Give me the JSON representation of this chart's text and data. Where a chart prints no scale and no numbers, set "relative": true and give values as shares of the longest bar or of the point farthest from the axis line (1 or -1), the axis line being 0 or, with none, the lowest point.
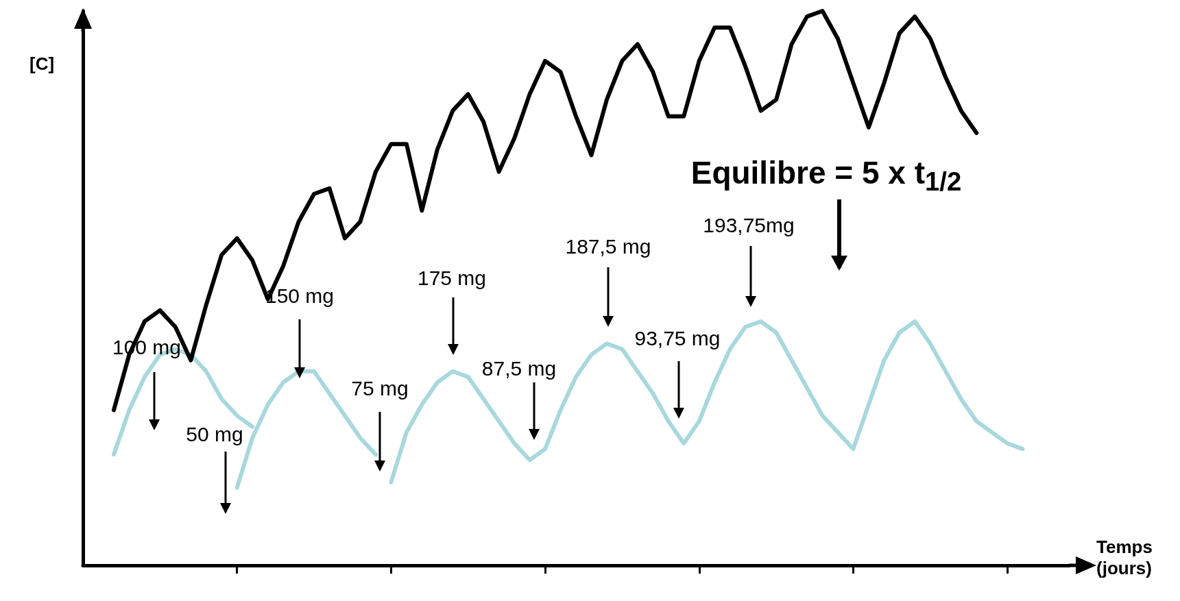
{
  "chart_data": {
    "type": "line",
    "relative": true,
    "xlabel": "Temps (jours)",
    "ylabel": "[C]",
    "categories": [
      null,
      null,
      null,
      null,
      null,
      null,
      null,
      null,
      null,
      null,
      null,
      null,
      null,
      null,
      null,
      null,
      null,
      null,
      null,
      null,
      null,
      null,
      null,
      null,
      null,
      null,
      null,
      null,
      null,
      null,
      null,
      null,
      null,
      null,
      null,
      null,
      null,
      null,
      null,
      null,
      null,
      null,
      null,
      null,
      null,
      null,
      null,
      null,
      null,
      null,
      null,
      null,
      null,
      null,
      null,
      null,
      null,
      null,
      null,
      null,
      null,
      null,
      null,
      null,
      null
    ],
    "series": [
      {
        "color": "#000000",
        "values": [
          null,
          null,
          0.28,
          0.38,
          0.44,
          0.46,
          0.43,
          0.37,
          0.47,
          0.56,
          0.59,
          0.55,
          0.48,
          0.54,
          0.62,
          0.67,
          0.68,
          0.59,
          0.62,
          0.71,
          0.76,
          0.76,
          0.64,
          0.75,
          0.82,
          0.85,
          0.8,
          0.71,
          0.77,
          0.85,
          0.91,
          0.89,
          0.81,
          0.74,
          0.84,
          0.91,
          0.94,
          0.89,
          0.81,
          0.81,
          0.91,
          0.97,
          0.97,
          0.9,
          0.82,
          0.84,
          0.94,
          0.99,
          1.0,
          0.95,
          0.87,
          0.79,
          0.87,
          0.96,
          0.99,
          0.95,
          0.88,
          0.82,
          0.78,
          null,
          null,
          null,
          null,
          null,
          null
        ]
      },
      {
        "color": "#a9d8dc",
        "values": [
          null,
          null,
          0.2,
          0.28,
          0.34,
          0.38,
          0.39,
          0.38,
          0.35,
          0.3,
          0.27,
          0.25,
          null,
          null,
          null,
          null,
          null,
          null,
          null,
          null,
          0.15,
          0.24,
          0.29,
          0.33,
          0.35,
          0.34,
          0.3,
          0.26,
          0.22,
          0.19,
          0.21,
          0.28,
          0.34,
          0.38,
          0.4,
          0.39,
          0.35,
          0.31,
          0.26,
          0.22,
          0.26,
          0.33,
          0.39,
          0.43,
          0.44,
          0.42,
          0.37,
          0.32,
          0.27,
          0.24,
          0.21,
          0.29,
          0.37,
          0.42,
          0.44,
          0.4,
          0.35,
          0.3,
          0.26,
          0.24,
          0.22,
          0.21,
          null,
          null,
          null
        ]
      },
      {
        "color": "#a9d8dc",
        "values": [
          null,
          null,
          null,
          null,
          null,
          null,
          null,
          null,
          null,
          null,
          0.14,
          0.23,
          0.29,
          0.33,
          0.35,
          0.35,
          0.31,
          0.27,
          0.23,
          0.2,
          null,
          null,
          null,
          null,
          null,
          null,
          null,
          null,
          null,
          null,
          null,
          null,
          null,
          null,
          null,
          null,
          null,
          null,
          null,
          null,
          null,
          null,
          null,
          null,
          null,
          null,
          null,
          null,
          null,
          null,
          null,
          null,
          null,
          null,
          null,
          null,
          null,
          null,
          null,
          null,
          null,
          null,
          null,
          null,
          null
        ]
      }
    ],
    "annotations": [
      "100 mg",
      "50 mg",
      "150 mg",
      "75 mg",
      "175 mg",
      "87,5 mg",
      "187,5 mg",
      "93,75 mg",
      "193,75mg",
      "Equilibre = 5 x t$_{1/2}$"
    ]
  }
}
